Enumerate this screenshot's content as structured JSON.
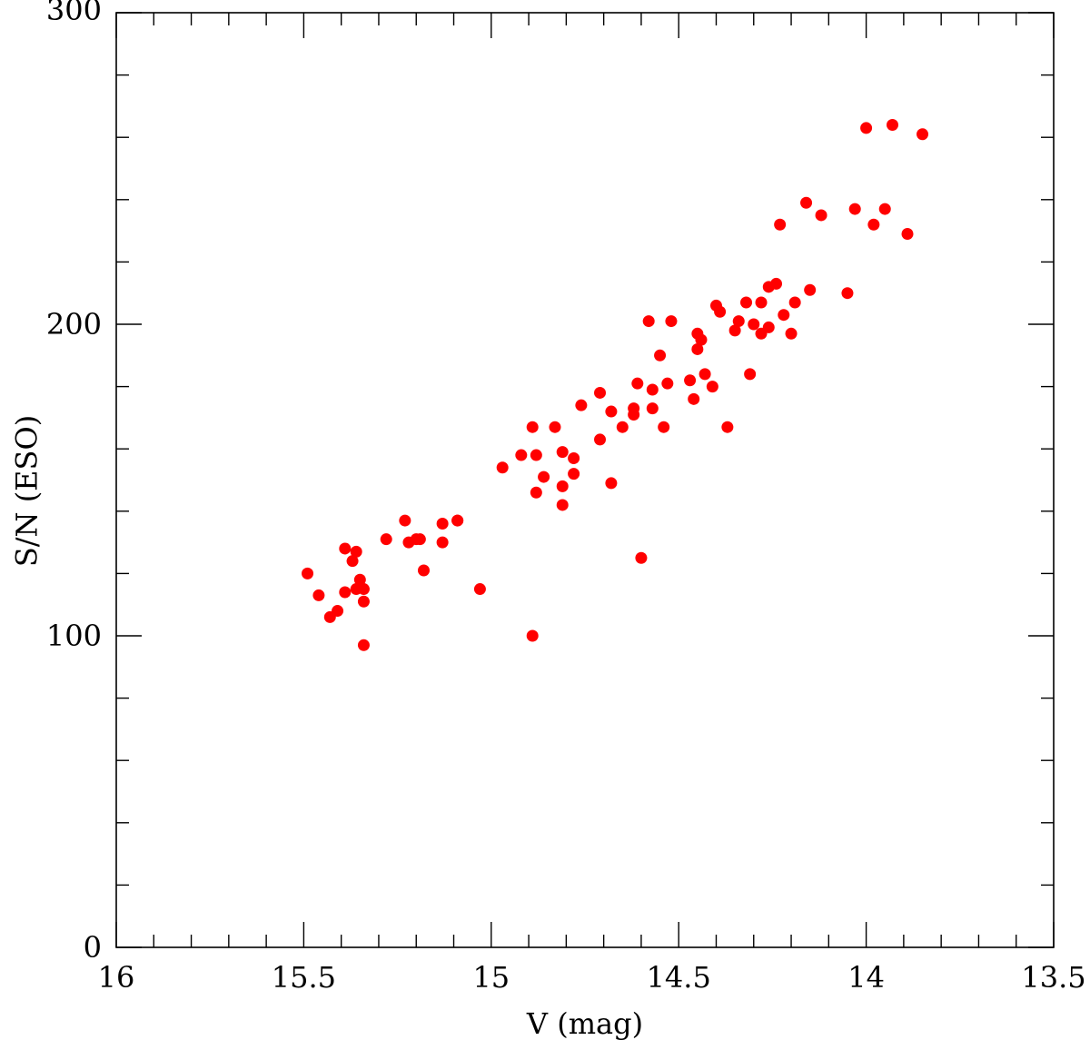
{
  "chart_data": {
    "type": "scatter",
    "xlabel": "V (mag)",
    "ylabel": "S/N (ESO)",
    "xlim": [
      16,
      13.5
    ],
    "ylim": [
      0,
      300
    ],
    "x_ticks": [
      {
        "value": 16,
        "label": "16"
      },
      {
        "value": 15.5,
        "label": "15.5"
      },
      {
        "value": 15,
        "label": "15"
      },
      {
        "value": 14.5,
        "label": "14.5"
      },
      {
        "value": 14,
        "label": "14"
      },
      {
        "value": 13.5,
        "label": "13.5"
      }
    ],
    "x_minor_step": 0.1,
    "y_ticks": [
      {
        "value": 0,
        "label": "0"
      },
      {
        "value": 100,
        "label": "100"
      },
      {
        "value": 200,
        "label": "200"
      },
      {
        "value": 300,
        "label": "300"
      }
    ],
    "y_minor_step": 20,
    "grid": false,
    "marker_color": "#ff0000",
    "points": [
      [
        15.49,
        120
      ],
      [
        15.46,
        113
      ],
      [
        15.43,
        106
      ],
      [
        15.41,
        108
      ],
      [
        15.39,
        114
      ],
      [
        15.39,
        128
      ],
      [
        15.37,
        124
      ],
      [
        15.36,
        127
      ],
      [
        15.36,
        115
      ],
      [
        15.35,
        118
      ],
      [
        15.34,
        111
      ],
      [
        15.34,
        115
      ],
      [
        15.34,
        97
      ],
      [
        15.28,
        131
      ],
      [
        15.23,
        137
      ],
      [
        15.22,
        130
      ],
      [
        15.2,
        131
      ],
      [
        15.19,
        131
      ],
      [
        15.18,
        121
      ],
      [
        15.13,
        130
      ],
      [
        15.13,
        136
      ],
      [
        15.09,
        137
      ],
      [
        15.09,
        137
      ],
      [
        15.03,
        115
      ],
      [
        14.97,
        154
      ],
      [
        14.92,
        158
      ],
      [
        14.89,
        167
      ],
      [
        14.89,
        100
      ],
      [
        14.88,
        158
      ],
      [
        14.88,
        146
      ],
      [
        14.86,
        151
      ],
      [
        14.83,
        167
      ],
      [
        14.81,
        142
      ],
      [
        14.81,
        148
      ],
      [
        14.81,
        159
      ],
      [
        14.78,
        152
      ],
      [
        14.78,
        157
      ],
      [
        14.76,
        174
      ],
      [
        14.71,
        178
      ],
      [
        14.71,
        163
      ],
      [
        14.68,
        172
      ],
      [
        14.68,
        149
      ],
      [
        14.65,
        167
      ],
      [
        14.62,
        171
      ],
      [
        14.62,
        173
      ],
      [
        14.61,
        181
      ],
      [
        14.6,
        125
      ],
      [
        14.58,
        201
      ],
      [
        14.57,
        173
      ],
      [
        14.57,
        179
      ],
      [
        14.55,
        190
      ],
      [
        14.54,
        167
      ],
      [
        14.53,
        181
      ],
      [
        14.52,
        201
      ],
      [
        14.47,
        182
      ],
      [
        14.46,
        176
      ],
      [
        14.45,
        197
      ],
      [
        14.45,
        192
      ],
      [
        14.44,
        195
      ],
      [
        14.43,
        184
      ],
      [
        14.41,
        180
      ],
      [
        14.4,
        206
      ],
      [
        14.39,
        204
      ],
      [
        14.37,
        167
      ],
      [
        14.35,
        198
      ],
      [
        14.34,
        201
      ],
      [
        14.32,
        207
      ],
      [
        14.31,
        184
      ],
      [
        14.3,
        200
      ],
      [
        14.28,
        207
      ],
      [
        14.28,
        197
      ],
      [
        14.26,
        212
      ],
      [
        14.26,
        199
      ],
      [
        14.24,
        213
      ],
      [
        14.23,
        232
      ],
      [
        14.22,
        203
      ],
      [
        14.2,
        197
      ],
      [
        14.19,
        207
      ],
      [
        14.16,
        239
      ],
      [
        14.15,
        211
      ],
      [
        14.12,
        235
      ],
      [
        14.05,
        210
      ],
      [
        14.03,
        237
      ],
      [
        14.0,
        263
      ],
      [
        13.98,
        232
      ],
      [
        13.95,
        237
      ],
      [
        13.93,
        264
      ],
      [
        13.89,
        229
      ],
      [
        13.85,
        261
      ]
    ]
  }
}
